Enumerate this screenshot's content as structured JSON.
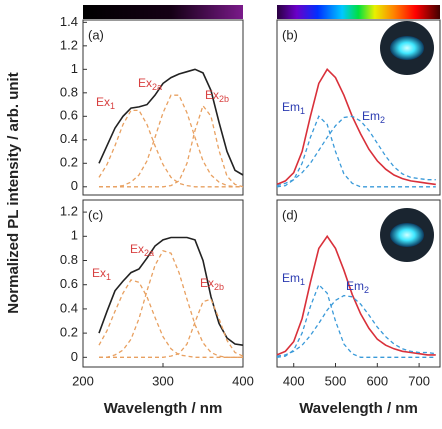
{
  "y_label": "Normalized PL intensity / arb. unit",
  "chart_data": [
    {
      "type": "line",
      "panel": "(a)",
      "xlim": [
        200,
        400
      ],
      "ylim": [
        -0.07,
        1.42
      ],
      "yticks": [
        0,
        0.2,
        0.4,
        0.6,
        0.8,
        1,
        1.2,
        1.4
      ],
      "x": [
        220,
        230,
        240,
        250,
        260,
        270,
        280,
        290,
        300,
        310,
        320,
        330,
        340,
        350,
        360,
        370,
        380,
        390,
        400
      ],
      "series": [
        {
          "color": "#222222",
          "style": "solid",
          "values": [
            0.2,
            0.35,
            0.5,
            0.6,
            0.67,
            0.68,
            0.7,
            0.78,
            0.88,
            0.93,
            0.96,
            0.98,
            1.0,
            0.97,
            0.82,
            0.55,
            0.3,
            0.14,
            0.1
          ]
        },
        {
          "color": "#e8a060",
          "style": "dashed",
          "values": [
            0.08,
            0.19,
            0.35,
            0.53,
            0.65,
            0.65,
            0.53,
            0.35,
            0.19,
            0.08,
            0.03,
            0.01,
            0,
            0,
            0,
            0,
            0,
            0,
            0
          ]
        },
        {
          "color": "#e8a060",
          "style": "dashed",
          "values": [
            0,
            0,
            0,
            0.01,
            0.04,
            0.1,
            0.22,
            0.42,
            0.63,
            0.78,
            0.78,
            0.63,
            0.42,
            0.22,
            0.1,
            0.04,
            0.01,
            0,
            0
          ]
        },
        {
          "color": "#e8a060",
          "style": "dashed",
          "values": [
            0,
            0,
            0,
            0,
            0,
            0,
            0,
            0,
            0,
            0.01,
            0.05,
            0.2,
            0.48,
            0.69,
            0.6,
            0.31,
            0.09,
            0.02,
            0
          ]
        }
      ],
      "annotations": [
        {
          "text": "Ex",
          "sub": "1"
        },
        {
          "text": "Ex",
          "sub": "2a"
        },
        {
          "text": "Ex",
          "sub": "2b"
        }
      ]
    },
    {
      "type": "line",
      "panel": "(b)",
      "xlim": [
        360,
        750
      ],
      "ylim": [
        -0.07,
        1.42
      ],
      "x": [
        360,
        380,
        400,
        420,
        440,
        460,
        480,
        500,
        520,
        540,
        560,
        580,
        600,
        620,
        640,
        660,
        680,
        700,
        720,
        740
      ],
      "series": [
        {
          "color": "#d9303a",
          "style": "solid",
          "values": [
            0.02,
            0.05,
            0.12,
            0.3,
            0.6,
            0.88,
            1.0,
            0.93,
            0.78,
            0.6,
            0.45,
            0.32,
            0.22,
            0.15,
            0.1,
            0.07,
            0.05,
            0.04,
            0.03,
            0.02
          ]
        },
        {
          "color": "#3a9ad9",
          "style": "dashed",
          "values": [
            0,
            0.01,
            0.06,
            0.2,
            0.42,
            0.6,
            0.53,
            0.3,
            0.11,
            0.03,
            0,
            0,
            0,
            0,
            0,
            0,
            0,
            0,
            0,
            0
          ]
        },
        {
          "color": "#3a9ad9",
          "style": "dashed",
          "values": [
            0.01,
            0.03,
            0.06,
            0.12,
            0.2,
            0.31,
            0.42,
            0.52,
            0.59,
            0.6,
            0.56,
            0.48,
            0.37,
            0.26,
            0.17,
            0.11,
            0.08,
            0.07,
            0.06,
            0.06
          ]
        }
      ],
      "annotations": [
        {
          "text": "Em",
          "sub": "1"
        },
        {
          "text": "Em",
          "sub": "2"
        }
      ]
    },
    {
      "type": "line",
      "panel": "(c)",
      "xlim": [
        200,
        400
      ],
      "ylim": [
        -0.08,
        1.3
      ],
      "yticks": [
        0,
        0.2,
        0.4,
        0.6,
        0.8,
        1,
        1.2
      ],
      "xticks": [
        200,
        300,
        400
      ],
      "xlabel": "Wavelength / nm",
      "x": [
        220,
        230,
        240,
        250,
        260,
        270,
        280,
        290,
        300,
        310,
        320,
        330,
        340,
        350,
        360,
        370,
        380,
        390,
        400
      ],
      "series": [
        {
          "color": "#222222",
          "style": "solid",
          "values": [
            0.2,
            0.38,
            0.55,
            0.63,
            0.7,
            0.73,
            0.82,
            0.92,
            0.97,
            0.99,
            0.99,
            0.99,
            0.97,
            0.8,
            0.5,
            0.28,
            0.16,
            0.11,
            0.1
          ]
        },
        {
          "color": "#e8a060",
          "style": "dashed",
          "values": [
            0.1,
            0.22,
            0.38,
            0.53,
            0.64,
            0.62,
            0.5,
            0.33,
            0.17,
            0.07,
            0.02,
            0.01,
            0,
            0,
            0,
            0,
            0,
            0,
            0
          ]
        },
        {
          "color": "#e8a060",
          "style": "dashed",
          "values": [
            0,
            0,
            0.02,
            0.06,
            0.15,
            0.32,
            0.55,
            0.76,
            0.88,
            0.86,
            0.7,
            0.48,
            0.27,
            0.12,
            0.04,
            0.01,
            0,
            0,
            0
          ]
        },
        {
          "color": "#e8a060",
          "style": "dashed",
          "values": [
            0,
            0,
            0,
            0,
            0,
            0,
            0,
            0,
            0,
            0.01,
            0.03,
            0.11,
            0.29,
            0.46,
            0.48,
            0.32,
            0.14,
            0.04,
            0.01
          ]
        }
      ],
      "annotations": [
        {
          "text": "Ex",
          "sub": "1"
        },
        {
          "text": "Ex",
          "sub": "2a"
        },
        {
          "text": "Ex",
          "sub": "2b"
        }
      ]
    },
    {
      "type": "line",
      "panel": "(d)",
      "xlim": [
        360,
        750
      ],
      "ylim": [
        -0.08,
        1.3
      ],
      "xticks": [
        400,
        500,
        600,
        700
      ],
      "xlabel": "Wavelength / nm",
      "x": [
        360,
        380,
        400,
        420,
        440,
        460,
        480,
        500,
        520,
        540,
        560,
        580,
        600,
        620,
        640,
        660,
        680,
        700,
        720,
        740
      ],
      "series": [
        {
          "color": "#d9303a",
          "style": "solid",
          "values": [
            0.02,
            0.05,
            0.13,
            0.32,
            0.62,
            0.9,
            1.0,
            0.9,
            0.72,
            0.52,
            0.36,
            0.24,
            0.15,
            0.1,
            0.07,
            0.05,
            0.04,
            0.03,
            0.02,
            0.02
          ]
        },
        {
          "color": "#3a9ad9",
          "style": "dashed",
          "values": [
            0,
            0.01,
            0.06,
            0.2,
            0.42,
            0.6,
            0.53,
            0.3,
            0.11,
            0.03,
            0,
            0,
            0,
            0,
            0,
            0,
            0,
            0,
            0,
            0
          ]
        },
        {
          "color": "#3a9ad9",
          "style": "dashed",
          "values": [
            0.01,
            0.02,
            0.05,
            0.1,
            0.18,
            0.28,
            0.39,
            0.47,
            0.51,
            0.5,
            0.44,
            0.35,
            0.25,
            0.17,
            0.11,
            0.07,
            0.05,
            0.04,
            0.04,
            0.03
          ]
        }
      ],
      "annotations": [
        {
          "text": "Em",
          "sub": "1"
        },
        {
          "text": "Em",
          "sub": "2"
        }
      ]
    }
  ]
}
